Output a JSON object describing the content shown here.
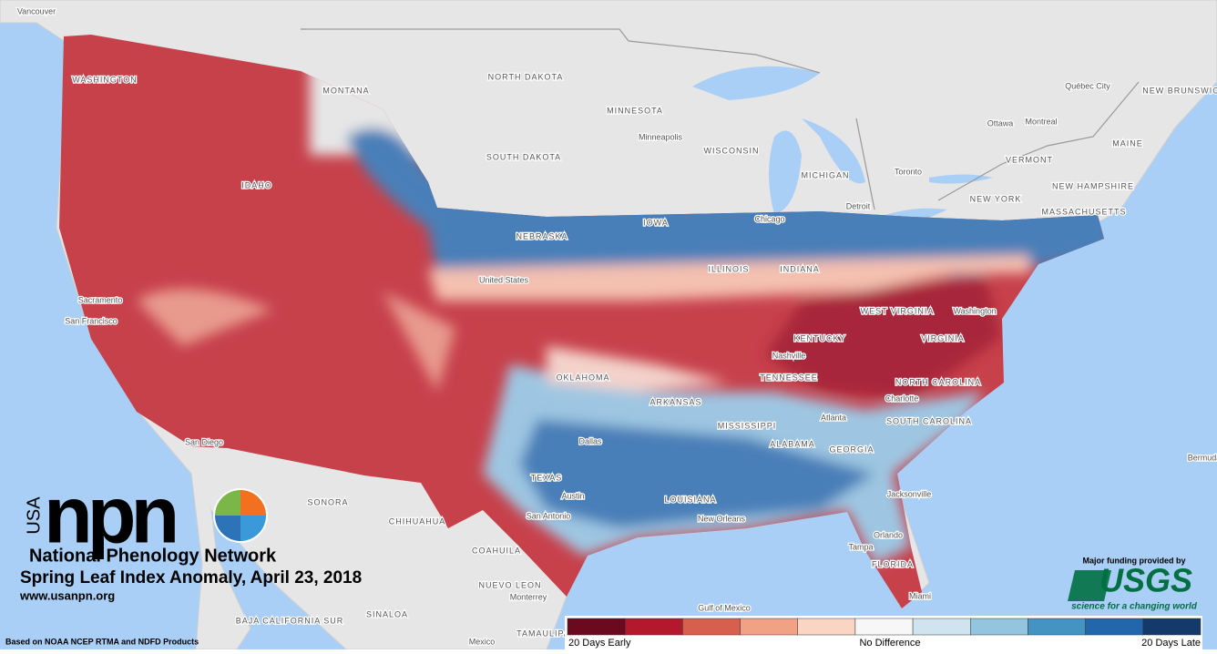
{
  "logo": {
    "usa": "USA",
    "npn": "npn",
    "name": "National Phenology Network"
  },
  "title": "Spring Leaf Index Anomaly, April 23, 2018",
  "url": "www.usanpn.org",
  "source": "Based on NOAA NCEP RTMA and NDFD Products",
  "funding": {
    "text": "Major funding provided by",
    "agency": "USGS",
    "tagline": "science for a changing world"
  },
  "legend": {
    "labels": [
      "20 Days Early",
      "No Difference",
      "20 Days Late"
    ],
    "colors": [
      "#6b0a1f",
      "#b3182c",
      "#d6604d",
      "#f1a285",
      "#fbd5c4",
      "#f7f7f7",
      "#d0e4f0",
      "#93c5de",
      "#4393c3",
      "#2266ac",
      "#133a6b"
    ]
  },
  "map": {
    "labels": [
      "Vancouver",
      "WASHINGTON",
      "MONTANA",
      "NORTH DAKOTA",
      "MINNESOTA",
      "SOUTH DAKOTA",
      "Minneapolis",
      "WISCONSIN",
      "MICHIGAN",
      "IDAHO",
      "NEBRASKA",
      "IOWA",
      "Chicago",
      "Detroit",
      "Toronto",
      "Ottawa",
      "Montreal",
      "Québec City",
      "NEW BRUNSWICK",
      "MAINE",
      "VERMONT",
      "NEW HAMPSHIRE",
      "NEW YORK",
      "MASSACHUSETTS",
      "United States",
      "ILLINOIS",
      "INDIANA",
      "WEST VIRGINIA",
      "Washington",
      "KENTUCKY",
      "VIRGINIA",
      "Nashville",
      "TENNESSEE",
      "NORTH CAROLINA",
      "Charlotte",
      "Sacramento",
      "San Francisco",
      "OKLAHOMA",
      "ARKANSAS",
      "Atlanta",
      "SOUTH CAROLINA",
      "MISSISSIPPI",
      "ALABAMA",
      "GEORGIA",
      "Dallas",
      "TEXAS",
      "LOUISIANA",
      "Austin",
      "San Antonio",
      "New Orleans",
      "Jacksonville",
      "Orlando",
      "Tampa",
      "FLORIDA",
      "Miami",
      "San Diego",
      "SONORA",
      "CHIHUAHUA",
      "COAHUILA",
      "NUEVO LEON",
      "Monterrey",
      "BAJA CALIFORNIA SUR",
      "SINALOA",
      "Mexico",
      "TAMAULIPAS",
      "Gulf of Mexico",
      "Bermuda"
    ]
  }
}
